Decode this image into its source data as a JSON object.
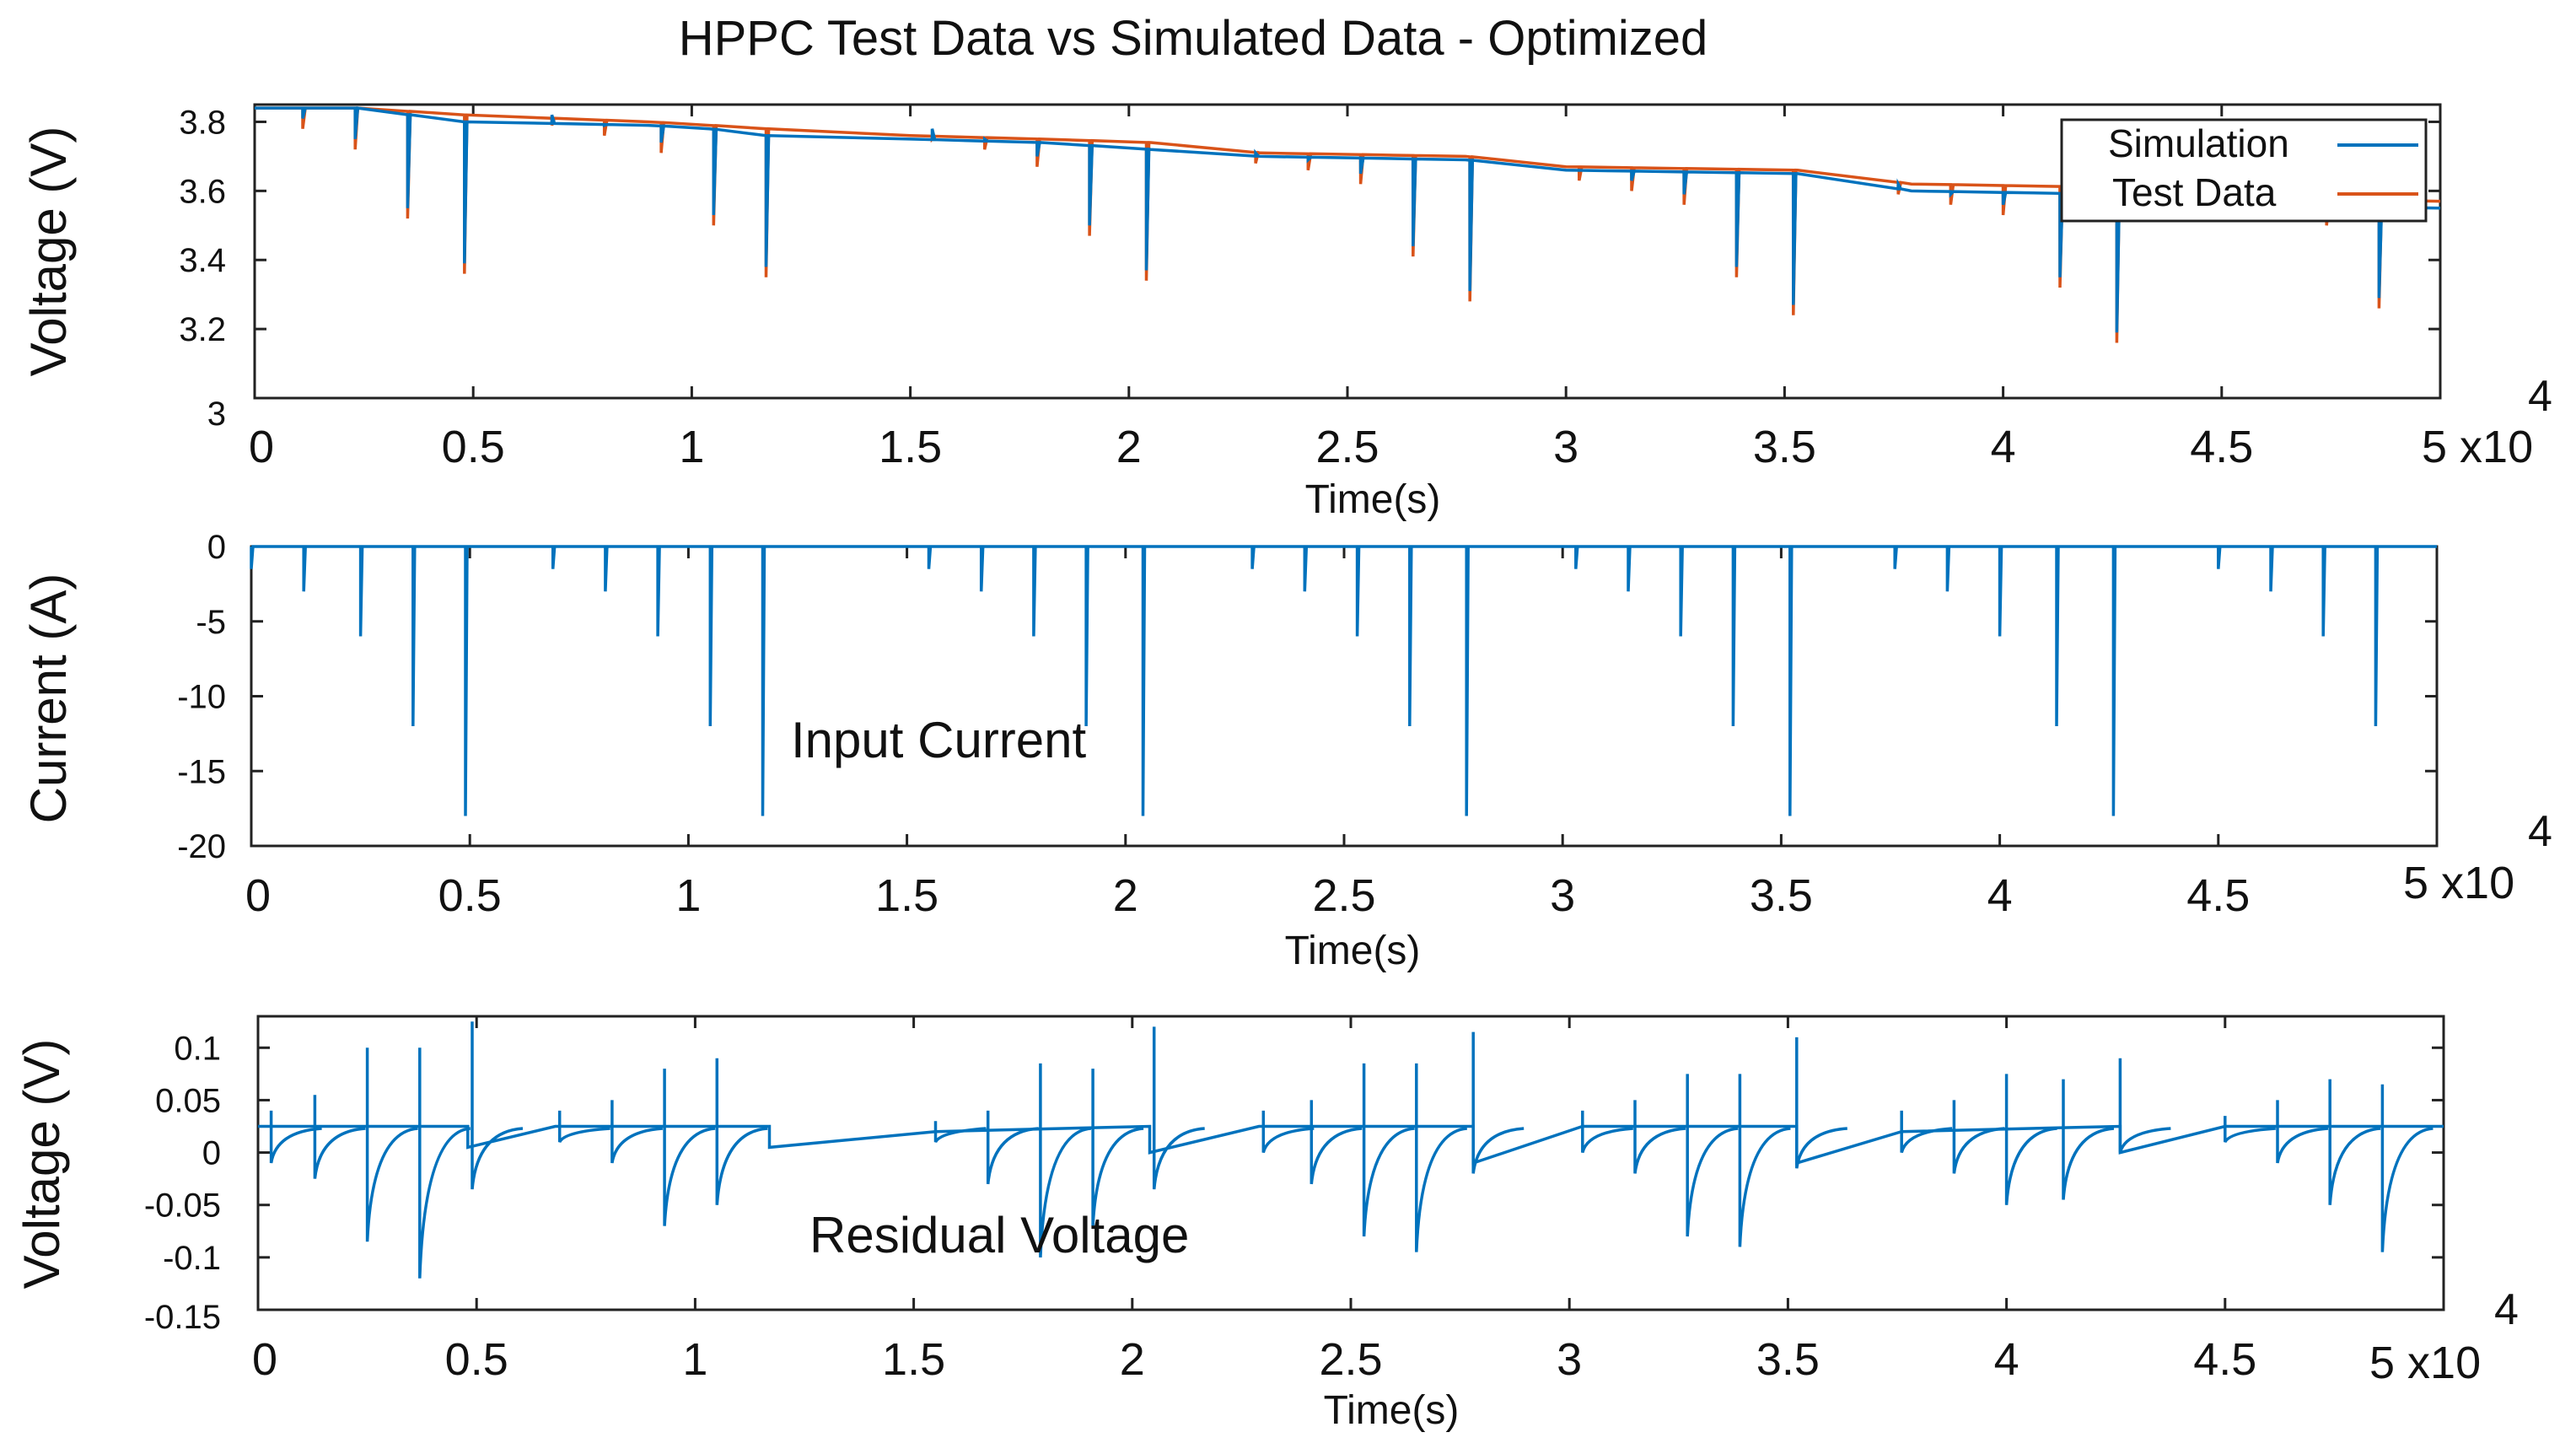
{
  "chart_data": [
    {
      "type": "line",
      "title": "HPPC Test Data vs Simulated Data - Optimized",
      "xlabel": "Time(s)",
      "ylabel": "Voltage (V)",
      "x_scale_label": "5 x10",
      "x_exponent": "4",
      "xlim": [
        0,
        50000
      ],
      "ylim": [
        3,
        3.85
      ],
      "x_ticks": [
        "0",
        "0.5",
        "1",
        "1.5",
        "2",
        "2.5",
        "3",
        "3.5",
        "4",
        "4.5"
      ],
      "y_ticks": [
        "3",
        "3.2",
        "3.4",
        "3.6",
        "3.8"
      ],
      "legend": {
        "position": "top-right",
        "entries": [
          "Simulation",
          "Test Data"
        ]
      },
      "colors": {
        "Simulation": "#0072BD",
        "Test Data": "#D95319"
      },
      "series": [
        {
          "name": "Test Data",
          "rest": [
            [
              0,
              3.84
            ],
            [
              2300,
              3.84
            ],
            [
              4800,
              3.82
            ],
            [
              9000,
              3.8
            ],
            [
              10400,
              3.79
            ],
            [
              11700,
              3.78
            ],
            [
              15000,
              3.76
            ],
            [
              18000,
              3.75
            ],
            [
              20500,
              3.74
            ],
            [
              23000,
              3.71
            ],
            [
              27700,
              3.7
            ],
            [
              30000,
              3.67
            ],
            [
              35300,
              3.66
            ],
            [
              37900,
              3.62
            ],
            [
              42600,
              3.61
            ],
            [
              45000,
              3.58
            ],
            [
              50000,
              3.57
            ]
          ],
          "pulses": [
            [
              1100,
              3.78
            ],
            [
              2300,
              3.72
            ],
            [
              3500,
              3.52
            ],
            [
              4800,
              3.36
            ],
            [
              6800,
              3.79
            ],
            [
              8000,
              3.76
            ],
            [
              9300,
              3.71
            ],
            [
              10500,
              3.5
            ],
            [
              11700,
              3.35
            ],
            [
              15500,
              3.75
            ],
            [
              16700,
              3.72
            ],
            [
              17900,
              3.67
            ],
            [
              19100,
              3.47
            ],
            [
              20400,
              3.34
            ],
            [
              22900,
              3.68
            ],
            [
              24100,
              3.66
            ],
            [
              25300,
              3.62
            ],
            [
              26500,
              3.41
            ],
            [
              27800,
              3.28
            ],
            [
              30300,
              3.63
            ],
            [
              31500,
              3.6
            ],
            [
              32700,
              3.56
            ],
            [
              33900,
              3.35
            ],
            [
              35200,
              3.24
            ],
            [
              37600,
              3.59
            ],
            [
              38800,
              3.56
            ],
            [
              40000,
              3.53
            ],
            [
              41300,
              3.32
            ],
            [
              42600,
              3.16
            ],
            [
              45000,
              3.56
            ],
            [
              46200,
              3.53
            ],
            [
              47400,
              3.5
            ],
            [
              48600,
              3.26
            ]
          ]
        },
        {
          "name": "Simulation",
          "rest": [
            [
              0,
              3.84
            ],
            [
              2300,
              3.84
            ],
            [
              4800,
              3.8
            ],
            [
              9000,
              3.79
            ],
            [
              10400,
              3.78
            ],
            [
              11700,
              3.76
            ],
            [
              15000,
              3.75
            ],
            [
              18000,
              3.74
            ],
            [
              20500,
              3.72
            ],
            [
              23000,
              3.7
            ],
            [
              27700,
              3.69
            ],
            [
              30000,
              3.66
            ],
            [
              35300,
              3.65
            ],
            [
              37900,
              3.6
            ],
            [
              42600,
              3.59
            ],
            [
              45000,
              3.56
            ],
            [
              50000,
              3.55
            ]
          ]
        }
      ]
    },
    {
      "type": "line",
      "title": "Input Current",
      "xlabel": "Time(s)",
      "ylabel": "Current (A)",
      "x_scale_label": "5 x10",
      "x_exponent": "4",
      "xlim": [
        0,
        50000
      ],
      "ylim": [
        -20,
        0
      ],
      "x_ticks": [
        "0",
        "0.5",
        "1",
        "1.5",
        "2",
        "2.5",
        "3",
        "3.5",
        "4",
        "4.5"
      ],
      "y_ticks": [
        "0",
        "-5",
        "-10",
        "-15",
        "-20"
      ],
      "colors": {
        "Current": "#0072BD"
      },
      "series": [
        {
          "name": "Current",
          "baseline": 0,
          "pulses": [
            [
              0,
              -1.5
            ],
            [
              1200,
              -3
            ],
            [
              2500,
              -6
            ],
            [
              3700,
              -12
            ],
            [
              4900,
              -18
            ],
            [
              6900,
              -1.5
            ],
            [
              8100,
              -3
            ],
            [
              9300,
              -6
            ],
            [
              10500,
              -12
            ],
            [
              11700,
              -18
            ],
            [
              15500,
              -1.5
            ],
            [
              16700,
              -3
            ],
            [
              17900,
              -6
            ],
            [
              19100,
              -12
            ],
            [
              20400,
              -18
            ],
            [
              22900,
              -1.5
            ],
            [
              24100,
              -3
            ],
            [
              25300,
              -6
            ],
            [
              26500,
              -12
            ],
            [
              27800,
              -18
            ],
            [
              30300,
              -1.5
            ],
            [
              31500,
              -3
            ],
            [
              32700,
              -6
            ],
            [
              33900,
              -12
            ],
            [
              35200,
              -18
            ],
            [
              37600,
              -1.5
            ],
            [
              38800,
              -3
            ],
            [
              40000,
              -6
            ],
            [
              41300,
              -12
            ],
            [
              42600,
              -18
            ],
            [
              45000,
              -1.5
            ],
            [
              46200,
              -3
            ],
            [
              47400,
              -6
            ],
            [
              48600,
              -12
            ]
          ]
        }
      ]
    },
    {
      "type": "line",
      "title": "Residual Voltage",
      "xlabel": "Time(s)",
      "ylabel": "Voltage (V)",
      "x_scale_label": "5 x10",
      "x_exponent": "4",
      "xlim": [
        0,
        50000
      ],
      "ylim": [
        -0.15,
        0.13
      ],
      "x_ticks": [
        "0",
        "0.5",
        "1",
        "1.5",
        "2",
        "2.5",
        "3",
        "3.5",
        "4",
        "4.5"
      ],
      "y_ticks": [
        "-0.15",
        "-0.1",
        "-0.05",
        "0",
        "0.05",
        "0.1"
      ],
      "colors": {
        "Residual": "#0072BD"
      },
      "series": [
        {
          "name": "Residual",
          "rest": [
            [
              0,
              0.025
            ],
            [
              4800,
              0.025
            ],
            [
              4800,
              0.005
            ],
            [
              6800,
              0.025
            ],
            [
              11700,
              0.025
            ],
            [
              11700,
              0.005
            ],
            [
              15500,
              0.02
            ],
            [
              20400,
              0.025
            ],
            [
              20400,
              0.0
            ],
            [
              22900,
              0.025
            ],
            [
              27800,
              0.025
            ],
            [
              27800,
              -0.01
            ],
            [
              30300,
              0.025
            ],
            [
              35200,
              0.025
            ],
            [
              35200,
              -0.01
            ],
            [
              37600,
              0.02
            ],
            [
              42600,
              0.025
            ],
            [
              42600,
              0.0
            ],
            [
              45000,
              0.025
            ],
            [
              50000,
              0.025
            ]
          ],
          "spikes": [
            [
              300,
              0.04,
              -0.01
            ],
            [
              1300,
              0.055,
              -0.025
            ],
            [
              2500,
              0.1,
              -0.085
            ],
            [
              3700,
              0.1,
              -0.12
            ],
            [
              4900,
              0.125,
              -0.035
            ],
            [
              6900,
              0.04,
              0.01
            ],
            [
              8100,
              0.05,
              -0.01
            ],
            [
              9300,
              0.08,
              -0.07
            ],
            [
              10500,
              0.09,
              -0.05
            ],
            [
              15500,
              0.03,
              0.01
            ],
            [
              16700,
              0.04,
              -0.03
            ],
            [
              17900,
              0.085,
              -0.1
            ],
            [
              19100,
              0.08,
              -0.07
            ],
            [
              20500,
              0.12,
              -0.035
            ],
            [
              23000,
              0.04,
              0.0
            ],
            [
              24100,
              0.05,
              -0.03
            ],
            [
              25300,
              0.085,
              -0.08
            ],
            [
              26500,
              0.085,
              -0.095
            ],
            [
              27800,
              0.115,
              -0.02
            ],
            [
              30300,
              0.04,
              0.0
            ],
            [
              31500,
              0.05,
              -0.02
            ],
            [
              32700,
              0.075,
              -0.08
            ],
            [
              33900,
              0.075,
              -0.09
            ],
            [
              35200,
              0.11,
              -0.015
            ],
            [
              37600,
              0.04,
              0.0
            ],
            [
              38800,
              0.05,
              -0.02
            ],
            [
              40000,
              0.075,
              -0.05
            ],
            [
              41300,
              0.07,
              -0.045
            ],
            [
              42600,
              0.09,
              0.0
            ],
            [
              45000,
              0.035,
              0.01
            ],
            [
              46200,
              0.05,
              -0.01
            ],
            [
              47400,
              0.07,
              -0.05
            ],
            [
              48600,
              0.065,
              -0.095
            ]
          ]
        }
      ]
    }
  ]
}
